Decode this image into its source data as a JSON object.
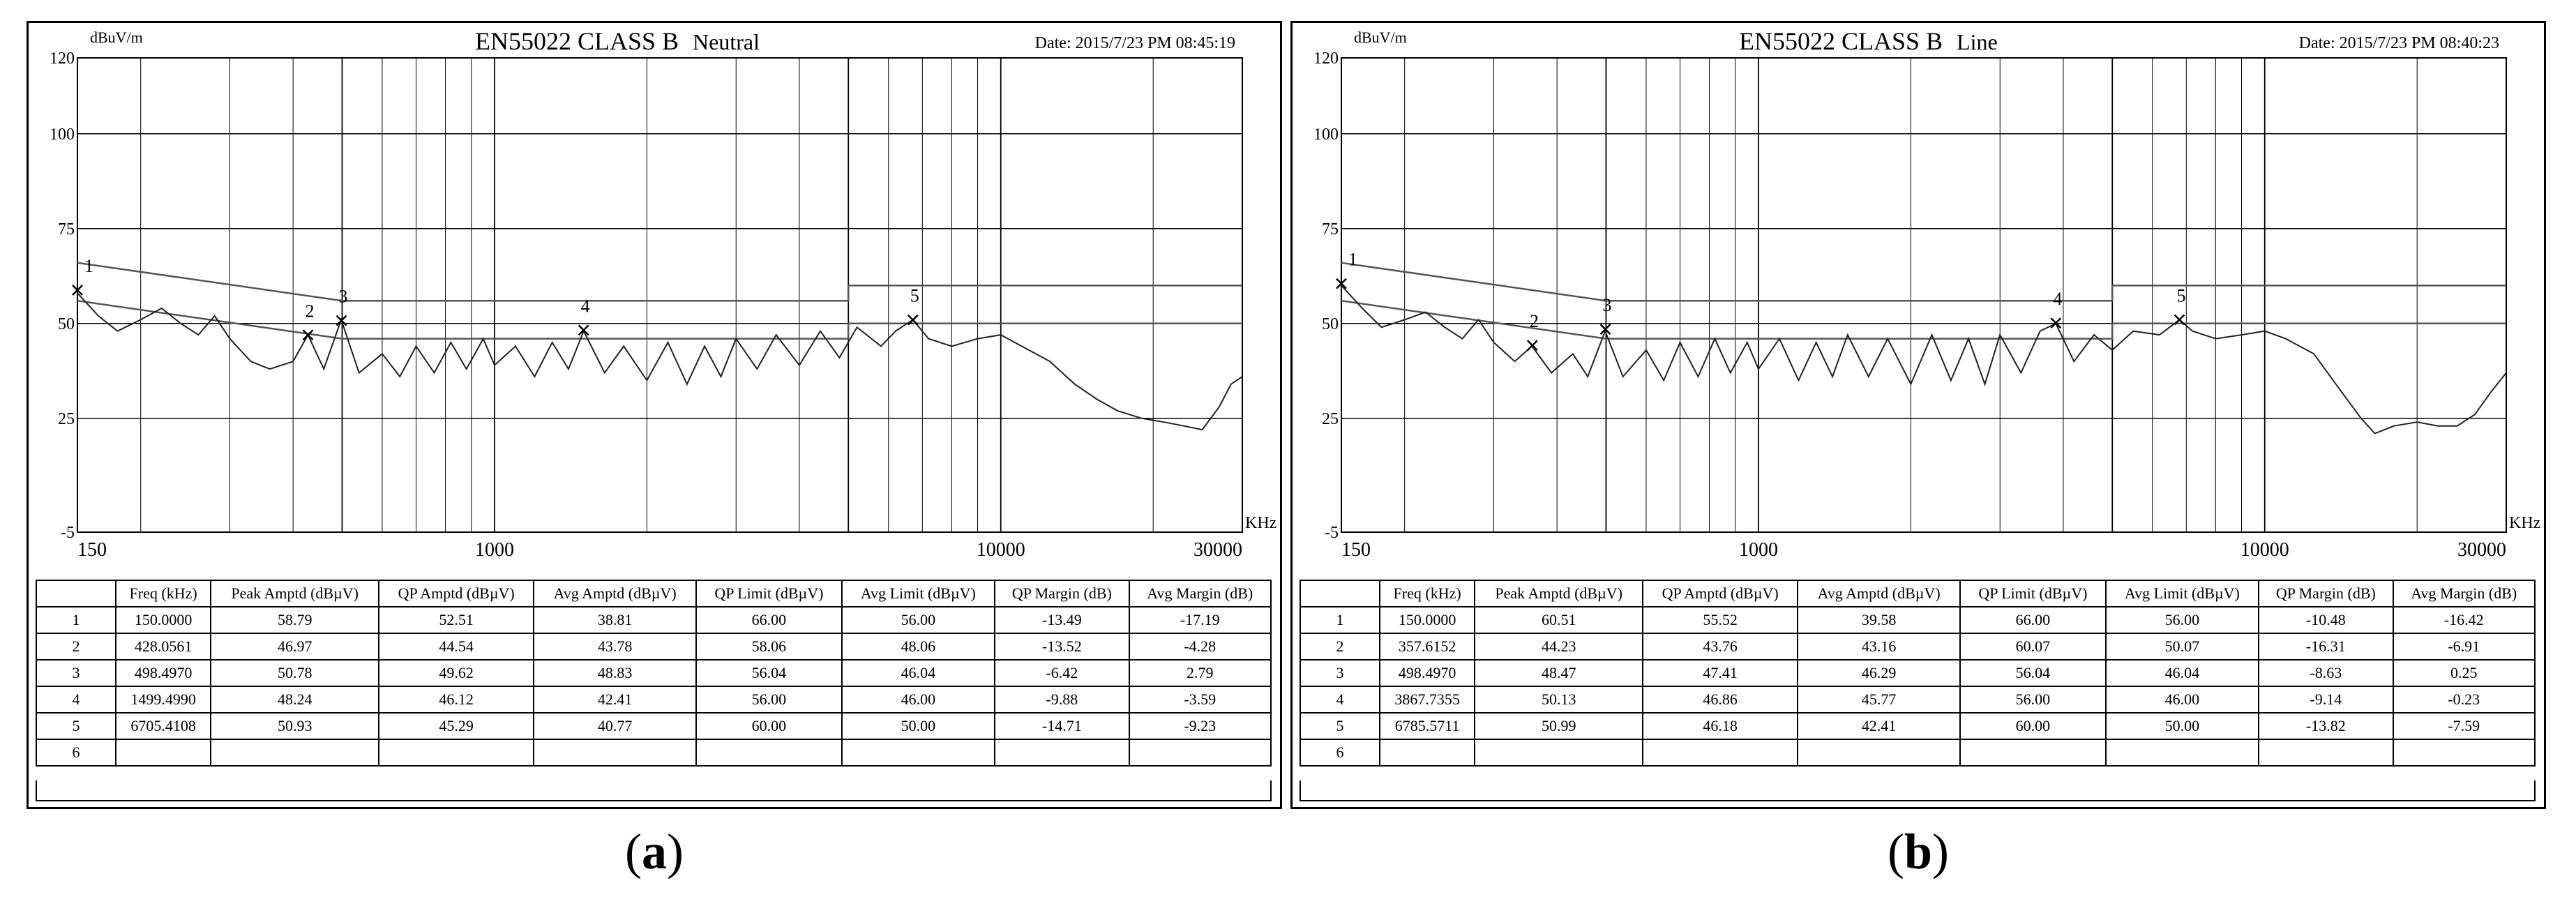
{
  "chart_data": [
    {
      "type": "line",
      "title": "EN55022 CLASS B",
      "subtitle": "Neutral",
      "date": "Date: 2015/7/23 PM 08:45:19",
      "ylabel": "dBuV/m",
      "xlabel": "KHz",
      "xscale": "log",
      "xlim": [
        150,
        30000
      ],
      "ylim": [
        -5,
        120
      ],
      "x_ticks": [
        "150",
        "1000",
        "10000",
        "30000"
      ],
      "y_ticks": [
        "120",
        "100",
        "75",
        "50",
        "25",
        "-5"
      ],
      "grid": true,
      "markers": [
        {
          "label": "1",
          "freq": 150.0,
          "level": 58.79
        },
        {
          "label": "2",
          "freq": 428.0561,
          "level": 46.97
        },
        {
          "label": "3",
          "freq": 498.497,
          "level": 50.78
        },
        {
          "label": "4",
          "freq": 1499.499,
          "level": 48.24
        },
        {
          "label": "5",
          "freq": 6705.4108,
          "level": 50.93
        }
      ],
      "limits": {
        "qp": [
          [
            150,
            66
          ],
          [
            500,
            56
          ],
          [
            5000,
            56
          ],
          [
            5000,
            60
          ],
          [
            30000,
            60
          ]
        ],
        "avg": [
          [
            150,
            56
          ],
          [
            500,
            46
          ],
          [
            5000,
            46
          ],
          [
            5000,
            50
          ],
          [
            30000,
            50
          ]
        ]
      },
      "trace": [
        [
          150,
          58
        ],
        [
          165,
          52
        ],
        [
          180,
          48
        ],
        [
          200,
          51
        ],
        [
          220,
          54
        ],
        [
          240,
          50
        ],
        [
          260,
          47
        ],
        [
          280,
          52
        ],
        [
          300,
          46
        ],
        [
          330,
          40
        ],
        [
          360,
          38
        ],
        [
          400,
          40
        ],
        [
          428,
          47
        ],
        [
          460,
          38
        ],
        [
          498,
          51
        ],
        [
          540,
          37
        ],
        [
          600,
          42
        ],
        [
          650,
          36
        ],
        [
          700,
          44
        ],
        [
          760,
          37
        ],
        [
          820,
          45
        ],
        [
          880,
          38
        ],
        [
          950,
          46
        ],
        [
          1000,
          39
        ],
        [
          1100,
          44
        ],
        [
          1200,
          36
        ],
        [
          1300,
          45
        ],
        [
          1400,
          38
        ],
        [
          1500,
          48
        ],
        [
          1650,
          37
        ],
        [
          1800,
          44
        ],
        [
          2000,
          35
        ],
        [
          2200,
          45
        ],
        [
          2400,
          34
        ],
        [
          2600,
          44
        ],
        [
          2800,
          36
        ],
        [
          3000,
          46
        ],
        [
          3300,
          38
        ],
        [
          3600,
          47
        ],
        [
          4000,
          39
        ],
        [
          4400,
          48
        ],
        [
          4800,
          41
        ],
        [
          5200,
          49
        ],
        [
          5800,
          44
        ],
        [
          6200,
          48
        ],
        [
          6705,
          51
        ],
        [
          7200,
          46
        ],
        [
          8000,
          44
        ],
        [
          9000,
          46
        ],
        [
          10000,
          47
        ],
        [
          11000,
          44
        ],
        [
          12500,
          40
        ],
        [
          14000,
          34
        ],
        [
          15500,
          30
        ],
        [
          17000,
          27
        ],
        [
          19000,
          25
        ],
        [
          21000,
          24
        ],
        [
          23000,
          23
        ],
        [
          25000,
          22
        ],
        [
          27000,
          28
        ],
        [
          28500,
          34
        ],
        [
          30000,
          36
        ]
      ],
      "table": {
        "headers": [
          "",
          "Freq (kHz)",
          "Peak Amptd (dBµV)",
          "QP Amptd (dBµV)",
          "Avg Amptd (dBµV)",
          "QP Limit (dBµV)",
          "Avg Limit (dBµV)",
          "QP Margin (dB)",
          "Avg Margin (dB)"
        ],
        "rows": [
          [
            "1",
            "150.0000",
            "58.79",
            "52.51",
            "38.81",
            "66.00",
            "56.00",
            "-13.49",
            "-17.19"
          ],
          [
            "2",
            "428.0561",
            "46.97",
            "44.54",
            "43.78",
            "58.06",
            "48.06",
            "-13.52",
            "-4.28"
          ],
          [
            "3",
            "498.4970",
            "50.78",
            "49.62",
            "48.83",
            "56.04",
            "46.04",
            "-6.42",
            "2.79"
          ],
          [
            "4",
            "1499.4990",
            "48.24",
            "46.12",
            "42.41",
            "56.00",
            "46.00",
            "-9.88",
            "-3.59"
          ],
          [
            "5",
            "6705.4108",
            "50.93",
            "45.29",
            "40.77",
            "60.00",
            "50.00",
            "-14.71",
            "-9.23"
          ],
          [
            "6",
            "",
            "",
            "",
            "",
            "",
            "",
            "",
            ""
          ]
        ]
      }
    },
    {
      "type": "line",
      "title": "EN55022 CLASS B",
      "subtitle": "Line",
      "date": "Date: 2015/7/23 PM 08:40:23",
      "ylabel": "dBuV/m",
      "xlabel": "KHz",
      "xscale": "log",
      "xlim": [
        150,
        30000
      ],
      "ylim": [
        -5,
        120
      ],
      "x_ticks": [
        "150",
        "1000",
        "10000",
        "30000"
      ],
      "y_ticks": [
        "120",
        "100",
        "75",
        "50",
        "25",
        "-5"
      ],
      "grid": true,
      "markers": [
        {
          "label": "1",
          "freq": 150.0,
          "level": 60.51
        },
        {
          "label": "2",
          "freq": 357.6152,
          "level": 44.23
        },
        {
          "label": "3",
          "freq": 498.497,
          "level": 48.47
        },
        {
          "label": "4",
          "freq": 3867.7355,
          "level": 50.13
        },
        {
          "label": "5",
          "freq": 6785.5711,
          "level": 50.99
        }
      ],
      "limits": {
        "qp": [
          [
            150,
            66
          ],
          [
            500,
            56
          ],
          [
            5000,
            56
          ],
          [
            5000,
            60
          ],
          [
            30000,
            60
          ]
        ],
        "avg": [
          [
            150,
            56
          ],
          [
            500,
            46
          ],
          [
            5000,
            46
          ],
          [
            5000,
            50
          ],
          [
            30000,
            50
          ]
        ]
      },
      "trace": [
        [
          150,
          60
        ],
        [
          165,
          54
        ],
        [
          180,
          49
        ],
        [
          200,
          51
        ],
        [
          220,
          53
        ],
        [
          240,
          49
        ],
        [
          260,
          46
        ],
        [
          280,
          51
        ],
        [
          300,
          45
        ],
        [
          330,
          40
        ],
        [
          357,
          44
        ],
        [
          390,
          37
        ],
        [
          430,
          42
        ],
        [
          460,
          36
        ],
        [
          498,
          48
        ],
        [
          540,
          36
        ],
        [
          600,
          43
        ],
        [
          650,
          35
        ],
        [
          700,
          45
        ],
        [
          760,
          36
        ],
        [
          820,
          46
        ],
        [
          880,
          37
        ],
        [
          950,
          45
        ],
        [
          1000,
          38
        ],
        [
          1100,
          46
        ],
        [
          1200,
          35
        ],
        [
          1300,
          45
        ],
        [
          1400,
          36
        ],
        [
          1500,
          47
        ],
        [
          1650,
          36
        ],
        [
          1800,
          46
        ],
        [
          2000,
          34
        ],
        [
          2200,
          47
        ],
        [
          2400,
          35
        ],
        [
          2600,
          46
        ],
        [
          2800,
          34
        ],
        [
          3000,
          47
        ],
        [
          3300,
          37
        ],
        [
          3600,
          48
        ],
        [
          3868,
          50
        ],
        [
          4200,
          40
        ],
        [
          4600,
          47
        ],
        [
          5000,
          43
        ],
        [
          5500,
          48
        ],
        [
          6200,
          47
        ],
        [
          6786,
          51
        ],
        [
          7200,
          48
        ],
        [
          8000,
          46
        ],
        [
          9000,
          47
        ],
        [
          10000,
          48
        ],
        [
          11000,
          46
        ],
        [
          12500,
          42
        ],
        [
          14000,
          33
        ],
        [
          15500,
          25
        ],
        [
          16500,
          21
        ],
        [
          18000,
          23
        ],
        [
          20000,
          24
        ],
        [
          22000,
          23
        ],
        [
          24000,
          23
        ],
        [
          26000,
          26
        ],
        [
          28000,
          32
        ],
        [
          30000,
          37
        ]
      ],
      "table": {
        "headers": [
          "",
          "Freq (kHz)",
          "Peak Amptd (dBµV)",
          "QP Amptd (dBµV)",
          "Avg Amptd (dBµV)",
          "QP Limit (dBµV)",
          "Avg Limit (dBµV)",
          "QP Margin (dB)",
          "Avg Margin (dB)"
        ],
        "rows": [
          [
            "1",
            "150.0000",
            "60.51",
            "55.52",
            "39.58",
            "66.00",
            "56.00",
            "-10.48",
            "-16.42"
          ],
          [
            "2",
            "357.6152",
            "44.23",
            "43.76",
            "43.16",
            "60.07",
            "50.07",
            "-16.31",
            "-6.91"
          ],
          [
            "3",
            "498.4970",
            "48.47",
            "47.41",
            "46.29",
            "56.04",
            "46.04",
            "-8.63",
            "0.25"
          ],
          [
            "4",
            "3867.7355",
            "50.13",
            "46.86",
            "45.77",
            "56.00",
            "46.00",
            "-9.14",
            "-0.23"
          ],
          [
            "5",
            "6785.5711",
            "50.99",
            "46.18",
            "42.41",
            "60.00",
            "50.00",
            "-13.82",
            "-7.59"
          ],
          [
            "6",
            "",
            "",
            "",
            "",
            "",
            "",
            "",
            ""
          ]
        ]
      }
    }
  ],
  "captions": [
    {
      "open": "(",
      "letter": "a",
      "close": ")"
    },
    {
      "open": "(",
      "letter": "b",
      "close": ")"
    }
  ]
}
